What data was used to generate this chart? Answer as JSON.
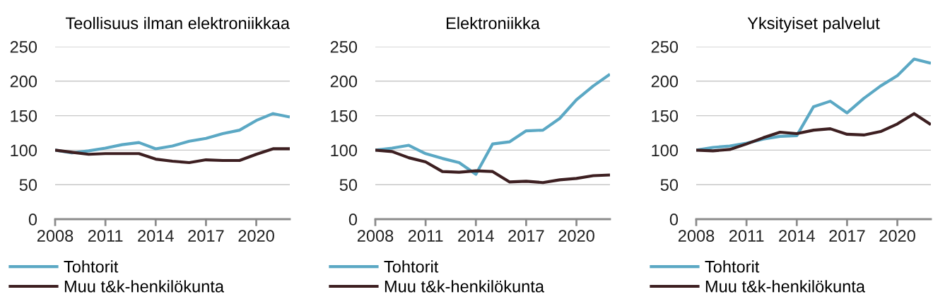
{
  "chart_data": [
    {
      "type": "line",
      "title": "Teollisuus ilman elektroniikkaa",
      "x": [
        2008,
        2009,
        2010,
        2011,
        2012,
        2013,
        2014,
        2015,
        2016,
        2017,
        2018,
        2019,
        2020,
        2021,
        2022
      ],
      "xlim": [
        2008,
        2022
      ],
      "xticks": [
        2008,
        2011,
        2014,
        2017,
        2020
      ],
      "ylim": [
        0,
        250
      ],
      "yticks": [
        0,
        50,
        100,
        150,
        200,
        250
      ],
      "grid": "y",
      "legend": "bottom",
      "marker": "none",
      "line_style": "solid",
      "series": [
        {
          "name": "Tohtorit",
          "color": "#5ba8c4",
          "values": [
            100,
            96,
            99,
            103,
            108,
            111,
            102,
            106,
            113,
            117,
            124,
            129,
            143,
            153,
            148
          ]
        },
        {
          "name": "Muu t&k-henkilökunta",
          "color": "#3d1f21",
          "values": [
            100,
            97,
            94,
            95,
            95,
            95,
            87,
            84,
            82,
            86,
            85,
            85,
            94,
            102,
            102
          ]
        }
      ]
    },
    {
      "type": "line",
      "title": "Elektroniikka",
      "x": [
        2008,
        2009,
        2010,
        2011,
        2012,
        2013,
        2014,
        2015,
        2016,
        2017,
        2018,
        2019,
        2020,
        2021,
        2022
      ],
      "xlim": [
        2008,
        2022
      ],
      "xticks": [
        2008,
        2011,
        2014,
        2017,
        2020
      ],
      "ylim": [
        0,
        250
      ],
      "yticks": [
        0,
        50,
        100,
        150,
        200,
        250
      ],
      "grid": "y",
      "legend": "bottom",
      "marker": "none",
      "line_style": "solid",
      "series": [
        {
          "name": "Tohtorit",
          "color": "#5ba8c4",
          "values": [
            100,
            103,
            107,
            95,
            88,
            82,
            65,
            109,
            112,
            128,
            129,
            146,
            173,
            193,
            210
          ]
        },
        {
          "name": "Muu t&k-henkilökunta",
          "color": "#3d1f21",
          "values": [
            100,
            98,
            89,
            83,
            69,
            68,
            70,
            69,
            54,
            55,
            53,
            57,
            59,
            63,
            64
          ]
        }
      ]
    },
    {
      "type": "line",
      "title": "Yksityiset palvelut",
      "x": [
        2008,
        2009,
        2010,
        2011,
        2012,
        2013,
        2014,
        2015,
        2016,
        2017,
        2018,
        2019,
        2020,
        2021,
        2022
      ],
      "xlim": [
        2008,
        2022
      ],
      "xticks": [
        2008,
        2011,
        2014,
        2017,
        2020
      ],
      "ylim": [
        0,
        250
      ],
      "yticks": [
        0,
        50,
        100,
        150,
        200,
        250
      ],
      "grid": "y",
      "legend": "bottom",
      "marker": "none",
      "line_style": "solid",
      "series": [
        {
          "name": "Tohtorit",
          "color": "#5ba8c4",
          "values": [
            100,
            104,
            106,
            110,
            116,
            120,
            121,
            163,
            171,
            154,
            175,
            193,
            208,
            232,
            226
          ]
        },
        {
          "name": "Muu t&k-henkilökunta",
          "color": "#3d1f21",
          "values": [
            100,
            99,
            101,
            109,
            118,
            126,
            124,
            129,
            131,
            123,
            122,
            127,
            138,
            153,
            137
          ]
        }
      ]
    }
  ]
}
